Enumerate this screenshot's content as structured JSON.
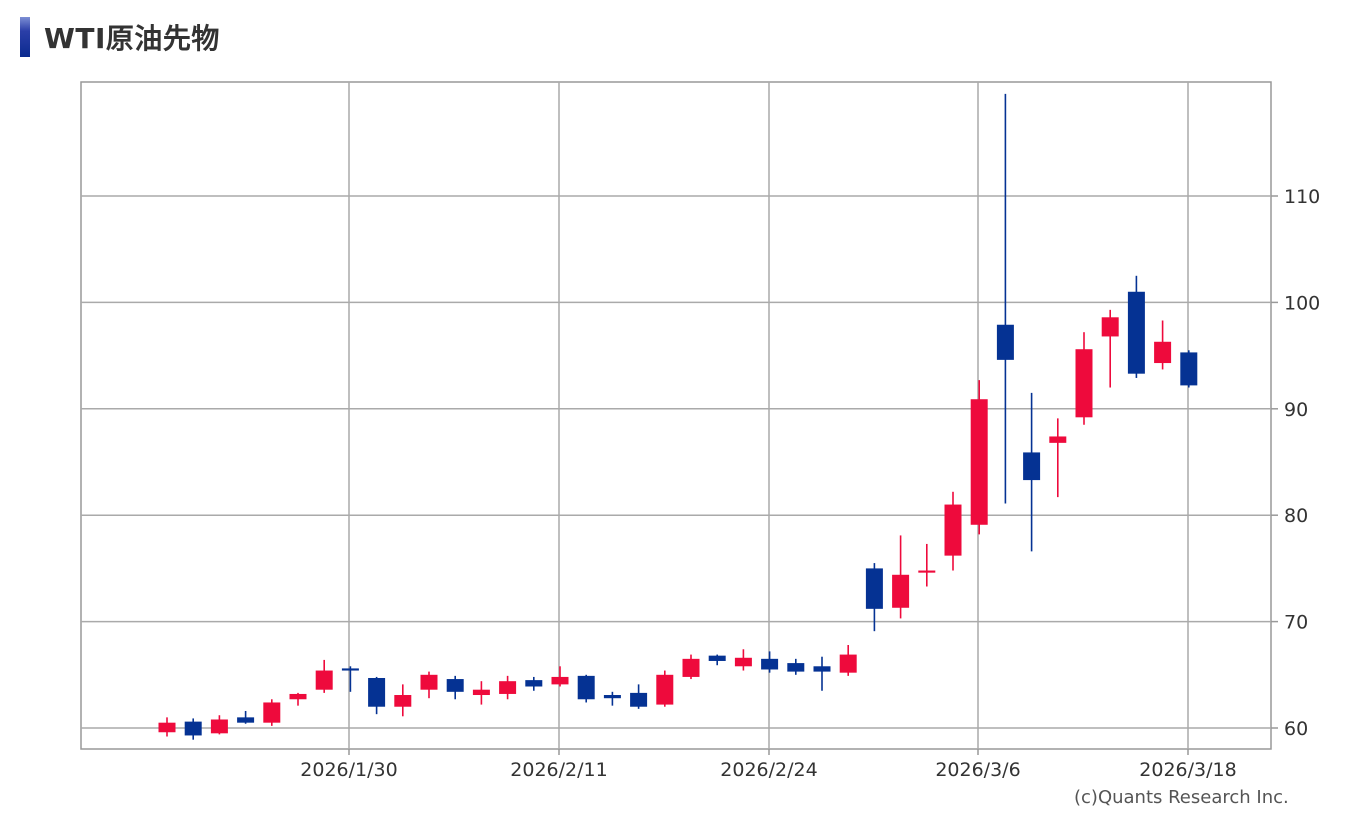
{
  "title": "WTI原油先物",
  "credit": "(c)Quants Research Inc.",
  "colors": {
    "up": "#ee0a3c",
    "down": "#053293",
    "grid": "#aaaaaa",
    "axis": "#999999",
    "text": "#333333"
  },
  "chart_data": {
    "type": "candlestick",
    "title": "WTI原油先物",
    "ylim": [
      57.8,
      121.0
    ],
    "y_ticks": [
      60,
      70,
      80,
      90,
      100,
      110
    ],
    "x_ticks": [
      "2026/1/30",
      "2026/2/11",
      "2026/2/24",
      "2026/3/6",
      "2026/3/18"
    ],
    "grid": true,
    "candles": [
      {
        "open": 59.6,
        "high": 61.0,
        "low": 59.2,
        "close": 60.5
      },
      {
        "open": 60.6,
        "high": 60.9,
        "low": 58.9,
        "close": 59.3
      },
      {
        "open": 59.5,
        "high": 61.2,
        "low": 59.4,
        "close": 60.8
      },
      {
        "open": 61.0,
        "high": 61.6,
        "low": 60.4,
        "close": 60.5
      },
      {
        "open": 60.5,
        "high": 62.7,
        "low": 60.2,
        "close": 62.4
      },
      {
        "open": 62.7,
        "high": 63.3,
        "low": 62.1,
        "close": 63.2
      },
      {
        "open": 63.6,
        "high": 66.4,
        "low": 63.3,
        "close": 65.4
      },
      {
        "open": 65.6,
        "high": 65.8,
        "low": 63.4,
        "close": 65.4
      },
      {
        "open": 64.7,
        "high": 64.8,
        "low": 61.3,
        "close": 62.0
      },
      {
        "open": 62.0,
        "high": 64.1,
        "low": 61.1,
        "close": 63.1
      },
      {
        "open": 63.6,
        "high": 65.3,
        "low": 62.8,
        "close": 65.0
      },
      {
        "open": 64.6,
        "high": 64.9,
        "low": 62.7,
        "close": 63.4
      },
      {
        "open": 63.1,
        "high": 64.4,
        "low": 62.2,
        "close": 63.6
      },
      {
        "open": 63.2,
        "high": 64.9,
        "low": 62.7,
        "close": 64.4
      },
      {
        "open": 64.5,
        "high": 64.8,
        "low": 63.5,
        "close": 63.9
      },
      {
        "open": 64.1,
        "high": 65.8,
        "low": 63.9,
        "close": 64.8
      },
      {
        "open": 64.9,
        "high": 65.0,
        "low": 62.4,
        "close": 62.7
      },
      {
        "open": 63.1,
        "high": 63.4,
        "low": 62.1,
        "close": 62.8
      },
      {
        "open": 63.3,
        "high": 64.1,
        "low": 61.8,
        "close": 62.0
      },
      {
        "open": 62.2,
        "high": 65.4,
        "low": 62.0,
        "close": 65.0
      },
      {
        "open": 64.8,
        "high": 66.9,
        "low": 64.6,
        "close": 66.5
      },
      {
        "open": 66.8,
        "high": 66.9,
        "low": 65.9,
        "close": 66.3
      },
      {
        "open": 65.8,
        "high": 67.4,
        "low": 65.4,
        "close": 66.6
      },
      {
        "open": 66.5,
        "high": 67.2,
        "low": 65.2,
        "close": 65.5
      },
      {
        "open": 66.1,
        "high": 66.5,
        "low": 65.0,
        "close": 65.3
      },
      {
        "open": 65.8,
        "high": 66.7,
        "low": 63.5,
        "close": 65.3
      },
      {
        "open": 65.2,
        "high": 67.8,
        "low": 64.9,
        "close": 66.9
      },
      {
        "open": 75.0,
        "high": 75.5,
        "low": 69.1,
        "close": 71.2
      },
      {
        "open": 71.3,
        "high": 78.1,
        "low": 70.3,
        "close": 74.4
      },
      {
        "open": 74.6,
        "high": 77.3,
        "low": 73.3,
        "close": 74.8
      },
      {
        "open": 76.2,
        "high": 82.2,
        "low": 74.8,
        "close": 81.0
      },
      {
        "open": 79.1,
        "high": 92.7,
        "low": 78.2,
        "close": 90.9
      },
      {
        "open": 97.9,
        "high": 119.6,
        "low": 81.1,
        "close": 94.6
      },
      {
        "open": 85.9,
        "high": 91.5,
        "low": 76.6,
        "close": 83.3
      },
      {
        "open": 86.8,
        "high": 89.1,
        "low": 81.7,
        "close": 87.4
      },
      {
        "open": 89.2,
        "high": 97.2,
        "low": 88.5,
        "close": 95.6
      },
      {
        "open": 96.8,
        "high": 99.3,
        "low": 92.0,
        "close": 98.6
      },
      {
        "open": 101.0,
        "high": 102.5,
        "low": 92.9,
        "close": 93.3
      },
      {
        "open": 94.3,
        "high": 98.3,
        "low": 93.7,
        "close": 96.3
      },
      {
        "open": 95.3,
        "high": 95.5,
        "low": 92.0,
        "close": 92.2
      }
    ]
  }
}
